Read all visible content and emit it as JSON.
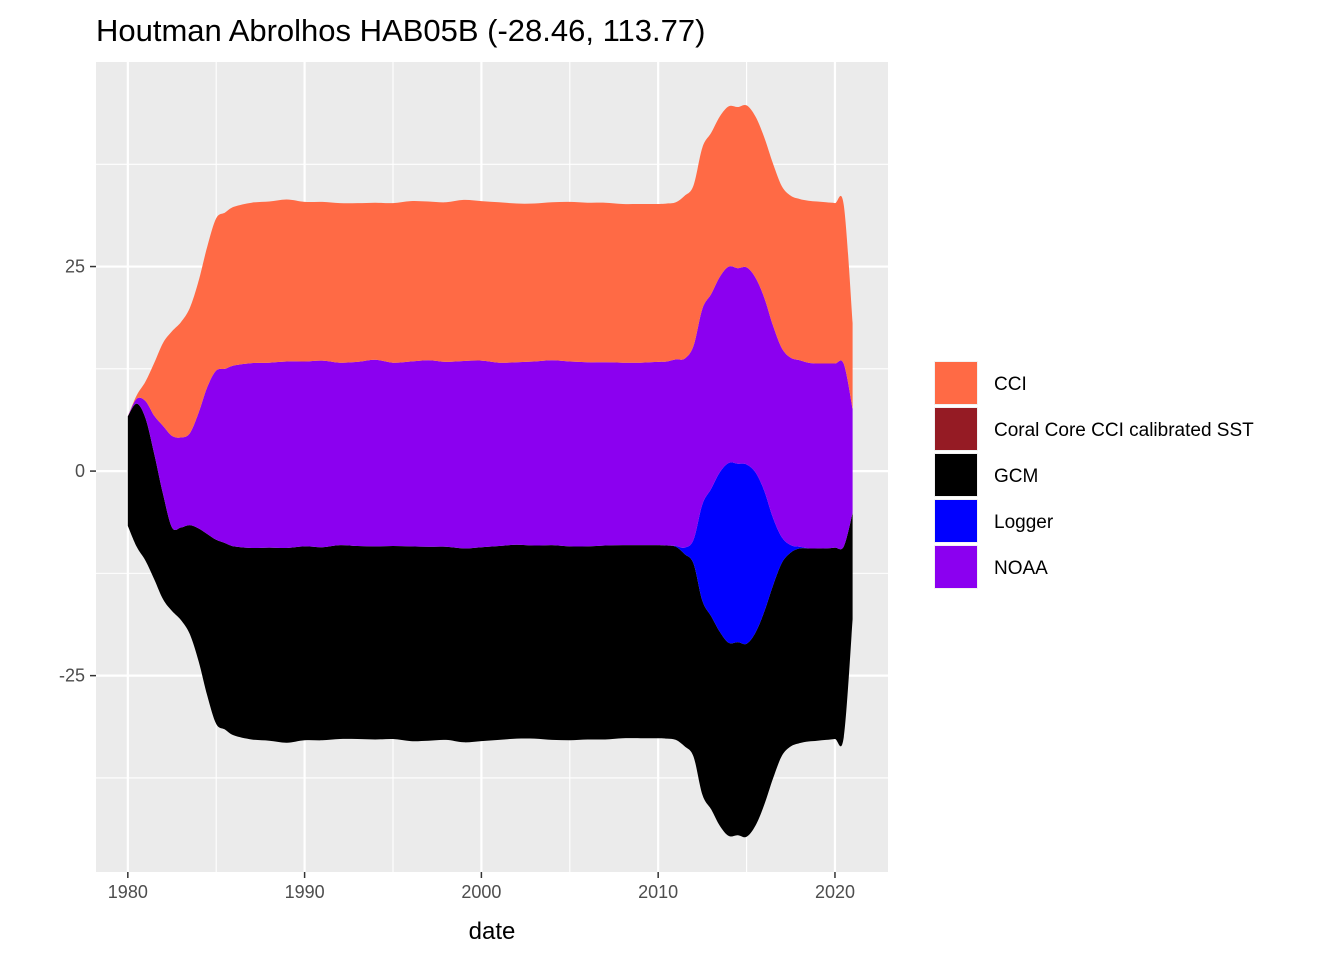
{
  "chart_data": {
    "type": "area",
    "subtype": "streamgraph",
    "title": "Houtman Abrolhos HAB05B (-28.46, 113.77)",
    "xlabel": "date",
    "ylabel": "",
    "xlim": [
      1978.2,
      2023
    ],
    "ylim": [
      -49,
      50
    ],
    "x_ticks": [
      1980,
      1990,
      2000,
      2010,
      2020
    ],
    "y_ticks": [
      -25,
      0,
      25
    ],
    "y_tick_labels": [
      "-25",
      "0",
      "25"
    ],
    "grid": true,
    "legend_position": "right",
    "legend": [
      {
        "name": "CCI",
        "color": "#FF6A45"
      },
      {
        "name": "Coral Core CCI calibrated SST",
        "color": "#951B24"
      },
      {
        "name": "GCM",
        "color": "#000000"
      },
      {
        "name": "Logger",
        "color": "#0000FF"
      },
      {
        "name": "NOAA",
        "color": "#8B00F0"
      }
    ],
    "x": [
      1980,
      1980.5,
      1981,
      1981.5,
      1982,
      1982.5,
      1983,
      1983.5,
      1984,
      1984.5,
      1985,
      1985.5,
      1986,
      1987,
      1988,
      1989,
      1990,
      1991,
      1992,
      1993,
      1994,
      1995,
      1996,
      1997,
      1998,
      1999,
      2000,
      2001,
      2002,
      2003,
      2004,
      2005,
      2006,
      2007,
      2008,
      2009,
      2010,
      2010.5,
      2011,
      2011.5,
      2012,
      2012.5,
      2013,
      2013.5,
      2014,
      2014.5,
      2015,
      2015.5,
      2016,
      2016.5,
      2017,
      2017.5,
      2018,
      2018.5,
      2019,
      2019.5,
      2020,
      2020.5,
      2021
    ],
    "series": [
      {
        "name": "GCM",
        "values": [
          13.4,
          17.5,
          17.4,
          15.3,
          12.8,
          10.2,
          11.3,
          13.3,
          16.2,
          19.8,
          22.5,
          22.8,
          23.1,
          23.4,
          23.6,
          23.8,
          23.7,
          23.6,
          23.7,
          23.6,
          23.6,
          23.6,
          23.8,
          23.7,
          23.6,
          23.7,
          23.7,
          23.7,
          23.7,
          23.6,
          23.8,
          23.7,
          23.6,
          23.7,
          23.6,
          23.6,
          23.6,
          23.6,
          23.6,
          23.5,
          23.6,
          23.7,
          23.6,
          23.7,
          23.6,
          23.6,
          23.6,
          23.6,
          23.6,
          23.6,
          23.6,
          23.7,
          23.8,
          23.6,
          23.5,
          23.4,
          23.4,
          23.3,
          13.0
        ]
      },
      {
        "name": "Logger",
        "values": [
          0,
          0,
          0,
          0,
          0,
          0,
          0,
          0,
          0,
          0,
          0,
          0,
          0,
          0,
          0,
          0,
          0,
          0,
          0,
          0,
          0,
          0,
          0,
          0,
          0,
          0,
          0,
          0,
          0,
          0,
          0,
          0,
          0,
          0,
          0,
          0,
          0,
          0,
          0.1,
          0.8,
          2.9,
          11.8,
          15.6,
          19.6,
          22.0,
          21.8,
          21.9,
          19.6,
          14.8,
          8.2,
          3.1,
          0.9,
          0.2,
          0,
          0,
          0,
          0,
          0,
          0
        ]
      },
      {
        "name": "NOAA",
        "values": [
          0,
          0.6,
          2.1,
          4.7,
          8.4,
          11.2,
          11.0,
          11.2,
          14.1,
          18.0,
          20.7,
          21.3,
          22.1,
          22.6,
          22.6,
          22.8,
          22.6,
          22.8,
          22.3,
          22.5,
          22.8,
          22.4,
          22.6,
          22.8,
          22.6,
          22.9,
          22.8,
          22.4,
          22.3,
          22.5,
          22.6,
          22.6,
          22.5,
          22.4,
          22.3,
          22.3,
          22.4,
          22.5,
          22.8,
          23.1,
          23.7,
          23.9,
          23.8,
          23.9,
          24.0,
          23.9,
          24.1,
          23.8,
          23.6,
          23.5,
          23.1,
          22.9,
          22.8,
          22.7,
          22.6,
          22.6,
          22.5,
          22.3,
          12.7
        ]
      },
      {
        "name": "CCI",
        "values": [
          0,
          0.4,
          2.4,
          6.5,
          10.2,
          12.8,
          14.1,
          15.3,
          16.1,
          17.2,
          18.6,
          19.1,
          19.4,
          19.6,
          19.7,
          19.8,
          19.5,
          19.4,
          19.5,
          19.4,
          19.2,
          19.5,
          19.6,
          19.4,
          19.5,
          19.7,
          19.5,
          19.6,
          19.4,
          19.3,
          19.3,
          19.5,
          19.5,
          19.5,
          19.4,
          19.4,
          19.3,
          19.3,
          19.2,
          19.9,
          19.6,
          19.7,
          19.7,
          19.6,
          19.6,
          19.7,
          19.8,
          19.7,
          19.6,
          19.8,
          19.8,
          19.8,
          19.7,
          19.8,
          19.8,
          19.7,
          19.6,
          19.4,
          10.5
        ]
      }
    ]
  }
}
